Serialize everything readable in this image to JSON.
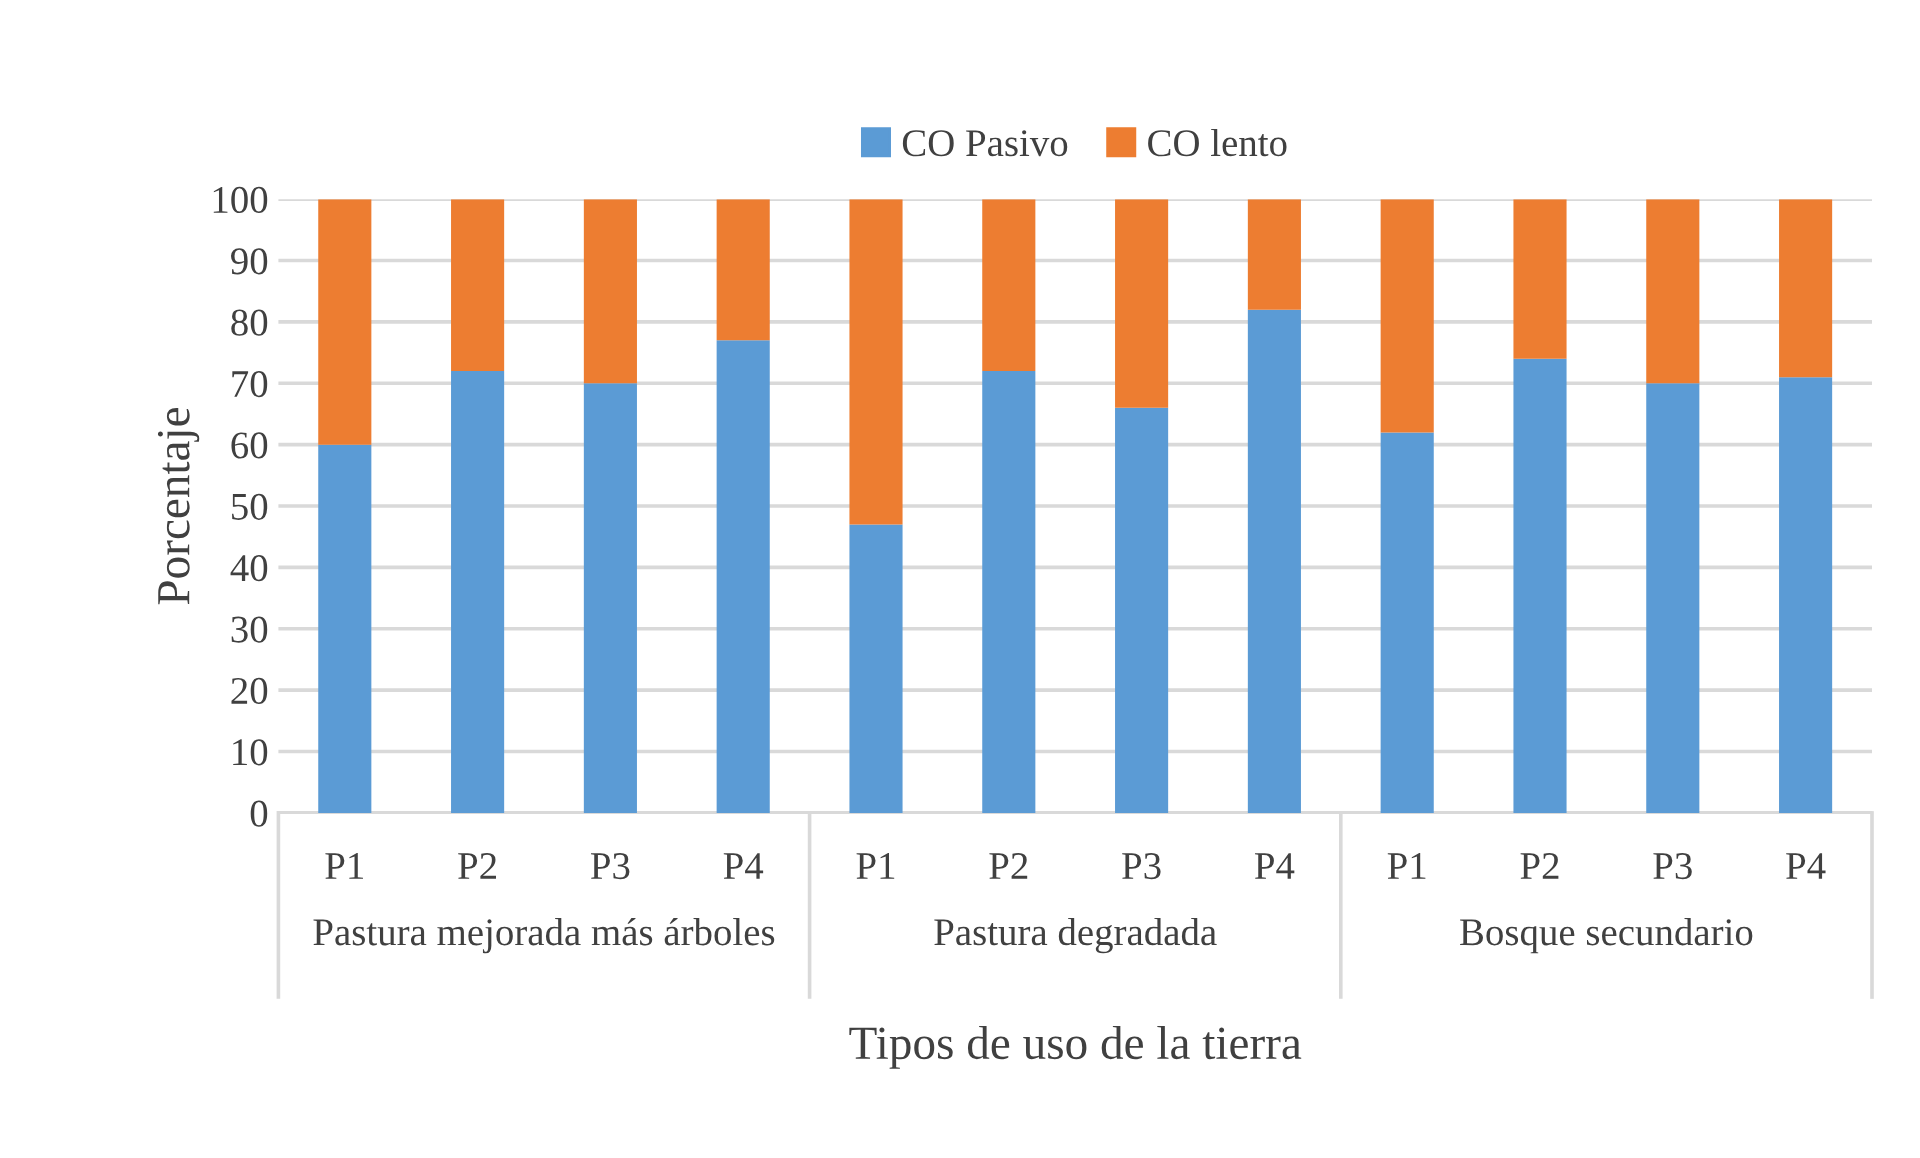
{
  "chart_data": {
    "type": "bar",
    "stacked": true,
    "categories": [
      "P1",
      "P2",
      "P3",
      "P4",
      "P1",
      "P2",
      "P3",
      "P4",
      "P1",
      "P2",
      "P3",
      "P4"
    ],
    "series": [
      {
        "name": "CO Pasivo",
        "color": "#5b9bd5",
        "values": [
          60,
          72,
          70,
          77,
          47,
          72,
          66,
          82,
          62,
          74,
          70,
          71
        ]
      },
      {
        "name": "CO lento",
        "color": "#ed7d31",
        "values": [
          40,
          28,
          30,
          23,
          53,
          28,
          34,
          18,
          38,
          26,
          30,
          29
        ]
      }
    ],
    "annotations": [
      "Pastura mejorada más árboles",
      "Pastura degradada",
      "Bosque secundario"
    ],
    "xlabel": "Tipos de uso de la tierra",
    "ylabel": "Porcentaje",
    "ylim": [
      0,
      100
    ],
    "yticks": [
      0,
      10,
      20,
      30,
      40,
      50,
      60,
      70,
      80,
      90,
      100
    ],
    "grid": "y",
    "legend": "top"
  }
}
